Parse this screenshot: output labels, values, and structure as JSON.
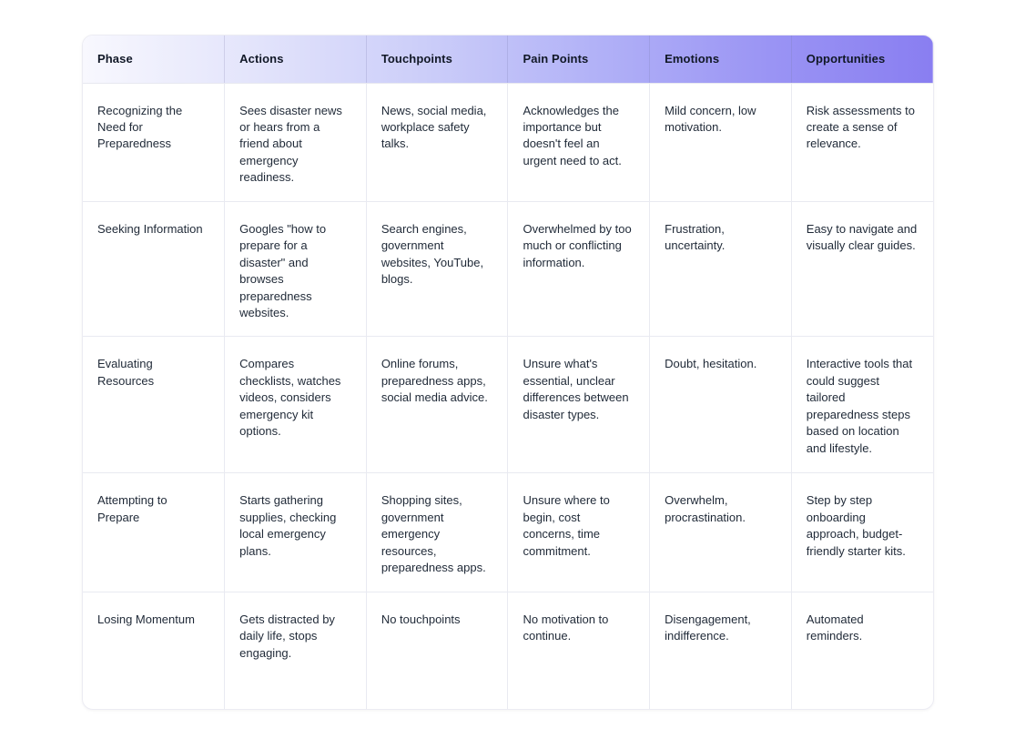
{
  "journey_map": {
    "columns": [
      "Phase",
      "Actions",
      "Touchpoints",
      "Pain Points",
      "Emotions",
      "Opportunities"
    ],
    "rows": [
      [
        "Recognizing the Need for Preparedness",
        "Sees disaster news or hears from a friend about emergency readiness.",
        "News, social media, workplace safety talks.",
        "Acknowledges the importance but doesn't feel an urgent need to act.",
        "Mild concern, low motivation.",
        "Risk assessments to create a sense of relevance."
      ],
      [
        "Seeking Information",
        "Googles \"how to prepare for a disaster\" and browses preparedness websites.",
        "Search engines, government websites, YouTube, blogs.",
        "Overwhelmed by too much or conflicting information.",
        "Frustration, uncertainty.",
        "Easy to navigate and visually clear guides."
      ],
      [
        "Evaluating Resources",
        "Compares checklists, watches videos, considers emergency kit options.",
        "Online forums, preparedness apps, social media advice.",
        "Unsure what's essential, unclear differences between disaster types.",
        "Doubt, hesitation.",
        "Interactive tools that could suggest tailored preparedness steps based on location and lifestyle."
      ],
      [
        "Attempting to Prepare",
        "Starts gathering supplies, checking local emergency plans.",
        "Shopping sites, government emergency resources, preparedness apps.",
        "Unsure where to begin, cost concerns, time commitment.",
        "Overwhelm, procrastination.",
        "Step by step onboarding approach, budget-friendly starter kits."
      ],
      [
        "Losing Momentum",
        "Gets distracted by daily life, stops engaging.",
        "No touchpoints",
        "No motivation to continue.",
        "Disengagement, indifference.",
        "Automated reminders."
      ]
    ]
  },
  "colors": {
    "header_gradient_start": "#f8f8fe",
    "header_gradient_end": "#897ef1",
    "grid_border": "#e9eaf1",
    "header_text": "#111827",
    "body_text": "#1f2937",
    "background": "#ffffff"
  }
}
